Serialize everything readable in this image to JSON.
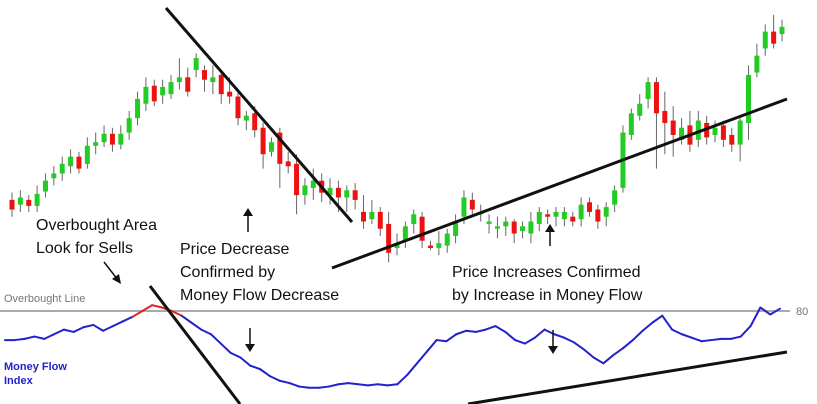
{
  "chart_data": [
    {
      "type": "candlestick",
      "candles": [
        [
          160,
          152,
          166,
          146
        ],
        [
          156,
          162,
          168,
          150
        ],
        [
          160,
          155,
          164,
          150
        ],
        [
          155,
          165,
          172,
          150
        ],
        [
          167,
          176,
          182,
          162
        ],
        [
          178,
          182,
          188,
          172
        ],
        [
          182,
          190,
          196,
          176
        ],
        [
          188,
          196,
          202,
          182
        ],
        [
          196,
          186,
          200,
          182
        ],
        [
          190,
          205,
          212,
          186
        ],
        [
          205,
          208,
          216,
          198
        ],
        [
          208,
          215,
          222,
          204
        ],
        [
          215,
          206,
          220,
          200
        ],
        [
          206,
          215,
          222,
          202
        ],
        [
          216,
          228,
          234,
          210
        ],
        [
          228,
          244,
          250,
          222
        ],
        [
          240,
          254,
          262,
          234
        ],
        [
          255,
          242,
          260,
          238
        ],
        [
          247,
          254,
          260,
          240
        ],
        [
          248,
          258,
          264,
          244
        ],
        [
          258,
          262,
          278,
          252
        ],
        [
          262,
          250,
          270,
          246
        ],
        [
          268,
          278,
          282,
          262
        ],
        [
          268,
          260,
          272,
          250
        ],
        [
          258,
          262,
          272,
          248
        ],
        [
          264,
          248,
          268,
          240
        ],
        [
          250,
          246,
          262,
          240
        ],
        [
          246,
          228,
          252,
          222
        ],
        [
          226,
          230,
          234,
          218
        ],
        [
          232,
          218,
          238,
          212
        ],
        [
          220,
          198,
          224,
          186
        ],
        [
          200,
          208,
          212,
          196
        ],
        [
          216,
          190,
          220,
          170
        ],
        [
          192,
          188,
          200,
          182
        ],
        [
          190,
          164,
          198,
          148
        ],
        [
          164,
          172,
          178,
          156
        ],
        [
          170,
          176,
          186,
          160
        ],
        [
          176,
          166,
          182,
          158
        ],
        [
          164,
          170,
          178,
          156
        ],
        [
          170,
          162,
          176,
          150
        ],
        [
          162,
          168,
          172,
          150
        ],
        [
          168,
          160,
          174,
          152
        ],
        [
          150,
          142,
          164,
          136
        ],
        [
          144,
          150,
          160,
          140
        ],
        [
          150,
          136,
          154,
          130
        ],
        [
          140,
          116,
          150,
          108
        ],
        [
          120,
          124,
          132,
          114
        ],
        [
          126,
          138,
          142,
          120
        ],
        [
          140,
          148,
          152,
          132
        ],
        [
          146,
          126,
          150,
          120
        ],
        [
          122,
          120,
          126,
          118
        ],
        [
          120,
          124,
          134,
          114
        ],
        [
          122,
          132,
          136,
          116
        ],
        [
          130,
          142,
          148,
          124
        ],
        [
          146,
          162,
          168,
          140
        ],
        [
          160,
          152,
          166,
          148
        ],
        [
          148,
          150,
          156,
          142
        ],
        [
          140,
          142,
          148,
          132
        ],
        [
          136,
          138,
          146,
          128
        ],
        [
          138,
          142,
          146,
          130
        ],
        [
          142,
          132,
          144,
          124
        ],
        [
          134,
          138,
          142,
          128
        ],
        [
          132,
          142,
          150,
          124
        ],
        [
          140,
          150,
          154,
          134
        ],
        [
          148,
          146,
          152,
          140
        ],
        [
          146,
          150,
          154,
          138
        ],
        [
          144,
          150,
          154,
          138
        ],
        [
          146,
          142,
          150,
          138
        ],
        [
          144,
          156,
          162,
          138
        ],
        [
          158,
          150,
          162,
          146
        ],
        [
          152,
          142,
          156,
          136
        ],
        [
          146,
          154,
          158,
          138
        ],
        [
          156,
          168,
          172,
          150
        ],
        [
          170,
          216,
          222,
          166
        ],
        [
          214,
          232,
          236,
          210
        ],
        [
          230,
          240,
          248,
          226
        ],
        [
          244,
          258,
          262,
          236
        ],
        [
          258,
          232,
          262,
          186
        ],
        [
          234,
          224,
          250,
          198
        ],
        [
          226,
          214,
          238,
          196
        ],
        [
          210,
          220,
          228,
          206
        ],
        [
          222,
          206,
          234,
          200
        ],
        [
          210,
          226,
          234,
          204
        ],
        [
          224,
          212,
          230,
          206
        ],
        [
          214,
          220,
          226,
          208
        ],
        [
          222,
          210,
          226,
          204
        ],
        [
          214,
          206,
          220,
          200
        ],
        [
          206,
          226,
          228,
          192
        ],
        [
          224,
          264,
          272,
          210
        ],
        [
          266,
          280,
          290,
          262
        ],
        [
          286,
          300,
          306,
          280
        ],
        [
          300,
          290,
          314,
          286
        ],
        [
          298,
          304,
          310,
          292
        ]
      ],
      "trendlines": [
        "resistance downtrend",
        "support uptrend"
      ]
    },
    {
      "type": "line",
      "overbought_level": 80,
      "mfi_colors": {
        "normal": "#2222cc",
        "overbought": "#dd2222"
      },
      "values": [
        55,
        55,
        56,
        58,
        56,
        60,
        64,
        62,
        66,
        68,
        63,
        67,
        71,
        75,
        80,
        85,
        83,
        80,
        76,
        70,
        64,
        60,
        52,
        44,
        40,
        33,
        30,
        24,
        20,
        18,
        15,
        14,
        14,
        15,
        17,
        18,
        17,
        16,
        17,
        16,
        17,
        25,
        35,
        45,
        55,
        54,
        60,
        63,
        62,
        64,
        67,
        62,
        55,
        52,
        57,
        64,
        60,
        57,
        53,
        47,
        40,
        35,
        42,
        48,
        55,
        63,
        70,
        76,
        64,
        60,
        57,
        54,
        55,
        56,
        56,
        58,
        67,
        83,
        77,
        82
      ]
    }
  ],
  "labels": {
    "overbought_area_1": "Overbought Area",
    "overbought_area_2": "Look for Sells",
    "price_decrease_1": "Price Decrease",
    "price_decrease_2": "Confirmed by",
    "price_decrease_3": "Money Flow Decrease",
    "price_increase_1": "Price Increases Confirmed",
    "price_increase_2": "by Increase in Money Flow",
    "overbought_line": "Overbought Line",
    "level_80": "80",
    "mfi_1": "Money Flow",
    "mfi_2": "Index"
  },
  "colors": {
    "up": "#22cc22",
    "down": "#ee1111",
    "wick": "#666666",
    "trendline": "#111111",
    "overbought_line": "#aaaaaa"
  }
}
